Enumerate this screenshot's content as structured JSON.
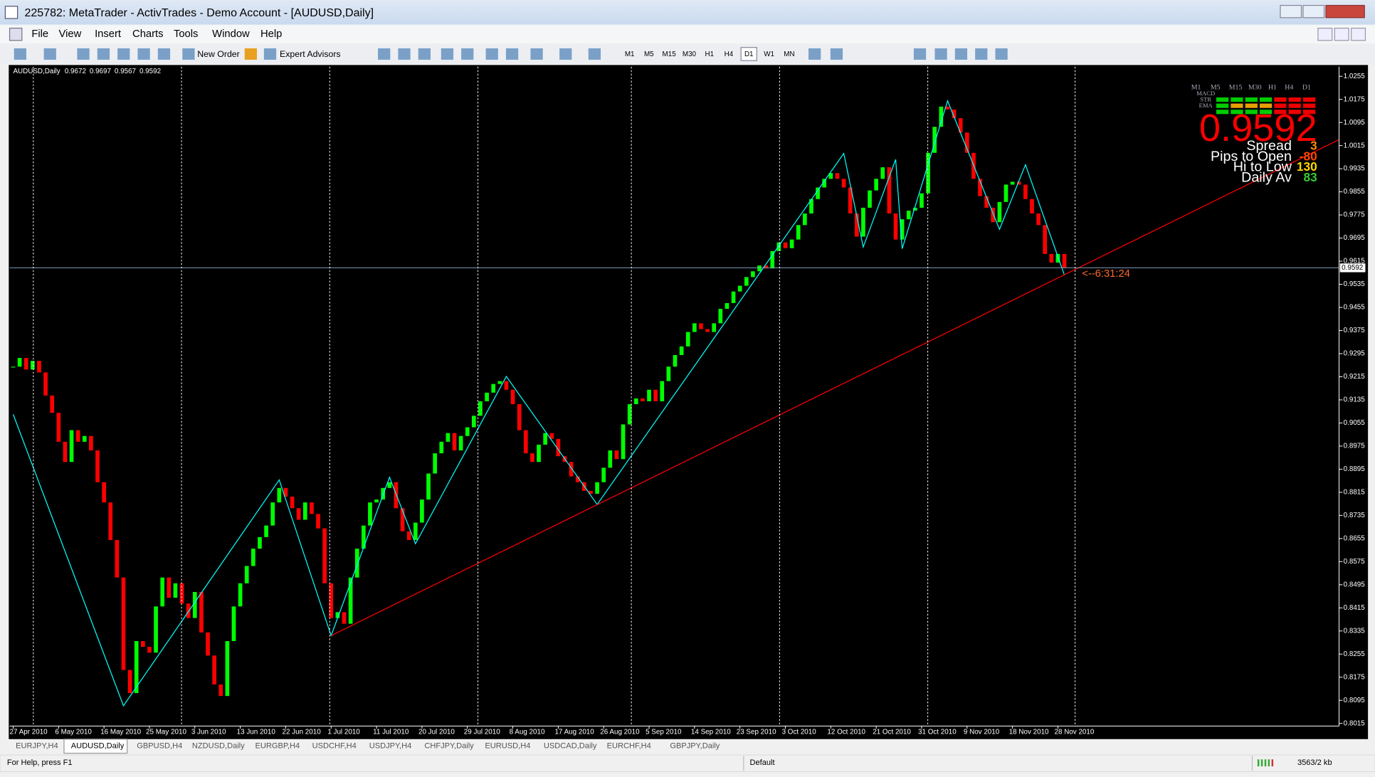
{
  "window": {
    "title": "225782: MetaTrader - ActivTrades - Demo Account - [AUDUSD,Daily]",
    "menu": [
      "File",
      "View",
      "Insert",
      "Charts",
      "Tools",
      "Window",
      "Help"
    ],
    "toolbar": {
      "new_order": "New Order",
      "expert_advisors": "Expert Advisors",
      "timeframes": [
        "M1",
        "M5",
        "M15",
        "M30",
        "H1",
        "H4",
        "D1",
        "W1",
        "MN"
      ]
    },
    "tabs": [
      "EURJPY,H4",
      "AUDUSD,Daily",
      "GBPUSD,H4",
      "NZDUSD,Daily",
      "EURGBP,H4",
      "USDCHF,H4",
      "USDJPY,H4",
      "CHFJPY,Daily",
      "EURUSD,H4",
      "USDCAD,Daily",
      "EURCHF,H4",
      "GBPJPY,Daily"
    ],
    "active_tab": 1,
    "status": {
      "help": "For Help, press F1",
      "profile": "Default",
      "traffic": "3563/2 kb"
    }
  },
  "chart_data": {
    "type": "candlestick",
    "symbol": "AUDUSD,Daily",
    "quote": [
      0.9672,
      0.9697,
      0.9567,
      0.9592
    ],
    "categories": [
      "27 Apr 2010",
      null,
      null,
      null,
      null,
      null,
      null,
      "6 May 2010",
      null,
      null,
      null,
      null,
      null,
      null,
      "16 May 2010",
      null,
      null,
      null,
      null,
      null,
      null,
      "25 May 2010",
      null,
      null,
      null,
      null,
      null,
      null,
      "3 Jun 2010",
      null,
      null,
      null,
      null,
      null,
      null,
      "13 Jun 2010",
      null,
      null,
      null,
      null,
      null,
      null,
      "22 Jun 2010",
      null,
      null,
      null,
      null,
      null,
      null,
      "1 Jul 2010",
      null,
      null,
      null,
      null,
      null,
      null,
      "11 Jul 2010",
      null,
      null,
      null,
      null,
      null,
      null,
      "20 Jul 2010",
      null,
      null,
      null,
      null,
      null,
      null,
      "29 Jul 2010",
      null,
      null,
      null,
      null,
      null,
      null,
      "8 Aug 2010",
      null,
      null,
      null,
      null,
      null,
      null,
      "17 Aug 2010",
      null,
      null,
      null,
      null,
      null,
      null,
      "26 Aug 2010",
      null,
      null,
      null,
      null,
      null,
      null,
      "5 Sep 2010",
      null,
      null,
      null,
      null,
      null,
      null,
      "14 Sep 2010",
      null,
      null,
      null,
      null,
      null,
      null,
      "23 Sep 2010",
      null,
      null,
      null,
      null,
      null,
      null,
      "3 Oct 2010",
      null,
      null,
      null,
      null,
      null,
      null,
      "12 Oct 2010",
      null,
      null,
      null,
      null,
      null,
      null,
      "21 Oct 2010",
      null,
      null,
      null,
      null,
      null,
      null,
      "31 Oct 2010",
      null,
      null,
      null,
      null,
      null,
      null,
      "9 Nov 2010",
      null,
      null,
      null,
      null,
      null,
      null,
      "18 Nov 2010",
      null,
      null,
      null,
      null,
      null,
      null,
      "28 Nov 2010",
      null
    ],
    "values": [
      0.925,
      0.928,
      0.924,
      0.927,
      0.923,
      0.915,
      0.909,
      0.899,
      0.892,
      0.903,
      0.899,
      0.901,
      0.896,
      0.885,
      0.878,
      0.865,
      0.852,
      0.82,
      0.812,
      0.83,
      0.828,
      0.826,
      0.842,
      0.852,
      0.845,
      0.85,
      0.843,
      0.838,
      0.847,
      0.833,
      0.825,
      0.815,
      0.811,
      0.83,
      0.842,
      0.85,
      0.856,
      0.862,
      0.866,
      0.87,
      0.878,
      0.883,
      0.88,
      0.876,
      0.872,
      0.878,
      0.874,
      0.869,
      0.85,
      0.838,
      0.84,
      0.836,
      0.852,
      0.862,
      0.87,
      0.878,
      0.879,
      0.883,
      0.885,
      0.876,
      0.868,
      0.865,
      0.871,
      0.879,
      0.888,
      0.895,
      0.899,
      0.902,
      0.896,
      0.901,
      0.904,
      0.908,
      0.913,
      0.916,
      0.919,
      0.92,
      0.917,
      0.912,
      0.903,
      0.895,
      0.892,
      0.898,
      0.902,
      0.9,
      0.894,
      0.892,
      0.887,
      0.885,
      0.882,
      0.881,
      0.885,
      0.89,
      0.896,
      0.893,
      0.905,
      0.912,
      0.914,
      0.913,
      0.917,
      0.913,
      0.92,
      0.925,
      0.929,
      0.932,
      0.937,
      0.94,
      0.938,
      0.937,
      0.94,
      0.945,
      0.947,
      0.951,
      0.953,
      0.956,
      0.958,
      0.96,
      0.959,
      0.965,
      0.968,
      0.966,
      0.969,
      0.974,
      0.978,
      0.983,
      0.987,
      0.99,
      0.992,
      0.99,
      0.987,
      0.978,
      0.97,
      0.98,
      0.986,
      0.99,
      0.994,
      0.978,
      0.969,
      0.976,
      0.979,
      0.98,
      0.985,
      0.999,
      1.008,
      1.015,
      1.014,
      1.011,
      1.006,
      0.999,
      0.99,
      0.984,
      0.98,
      0.975,
      0.982,
      0.988,
      0.989,
      0.988,
      0.983,
      0.978,
      0.974,
      0.964,
      0.961,
      0.964,
      0.9592
    ],
    "up_color": "#00ff00",
    "down_color": "#ff0000",
    "ylim": [
      0.8006,
      1.0288
    ],
    "yticks": [
      1.0255,
      1.0175,
      1.0095,
      1.0015,
      0.9935,
      0.9855,
      0.9775,
      0.9695,
      0.9615,
      0.9535,
      0.9455,
      0.9375,
      0.9295,
      0.9215,
      0.9135,
      0.9055,
      0.8975,
      0.8895,
      0.8815,
      0.8735,
      0.8655,
      0.8575,
      0.8495,
      0.8415,
      0.8335,
      0.8255,
      0.8175,
      0.8095,
      0.8015
    ],
    "bid": 0.9592,
    "bid_color": "#7f9db9",
    "zigzag": {
      "color": "#00ffff",
      "x": [
        0,
        17,
        41,
        49,
        58,
        62,
        76,
        90,
        128,
        131,
        136,
        137,
        144,
        152,
        156,
        162
      ],
      "values": [
        0.9085,
        0.8076,
        0.8858,
        0.8319,
        0.8867,
        0.8637,
        0.9216,
        0.8773,
        0.9988,
        0.9664,
        0.9967,
        0.9658,
        1.017,
        0.9725,
        0.9949,
        0.9567
      ]
    },
    "trendline": {
      "color": "#ff0000",
      "x": [
        49,
        162
      ],
      "values": [
        0.8319,
        0.9568
      ]
    },
    "timer": "<--6:31:24",
    "timer_color": "#ff6a2a",
    "panel": {
      "timeframes": [
        "M1",
        "M5",
        "M15",
        "M30",
        "H1",
        "H4",
        "D1"
      ],
      "indicators": [
        "MACD",
        "STR",
        "EMA"
      ],
      "price_color": "#ff0000",
      "rows": [
        {
          "label": "Spread",
          "value": 3,
          "color": "#ff8c00"
        },
        {
          "label": "Pips to Open",
          "value": -80,
          "color": "#ff4500"
        },
        {
          "label": "Hi to Low",
          "value": 130,
          "color": "#ffd700"
        },
        {
          "label": "Daily Av",
          "value": 83,
          "color": "#32cd32"
        }
      ]
    }
  }
}
